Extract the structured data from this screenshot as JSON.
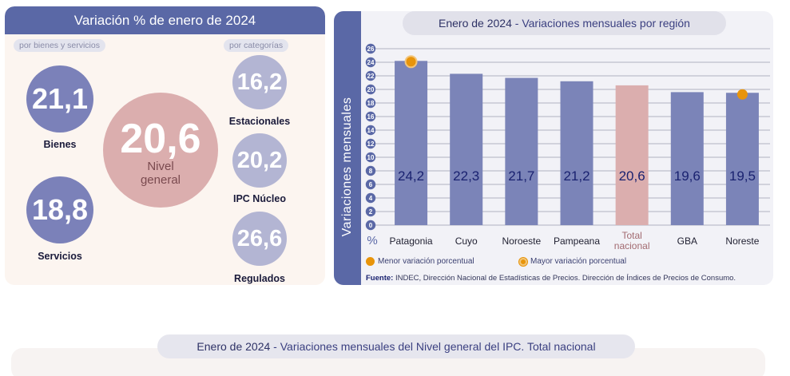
{
  "left": {
    "title": "Variación % de enero de 2024",
    "pill_goods": "por bienes y servicios",
    "pill_categories": "por categorías",
    "bubbles": [
      {
        "value": "21,1",
        "label": "Bienes"
      },
      {
        "value": "18,8",
        "label": "Servicios"
      },
      {
        "value": "20,6",
        "label_line1": "Nivel",
        "label_line2": "general"
      },
      {
        "value": "16,2",
        "label": "Estacionales"
      },
      {
        "value": "20,2",
        "label": "IPC Núcleo"
      },
      {
        "value": "26,6",
        "label": "Regulados"
      }
    ]
  },
  "right": {
    "title_prefix": "Enero de 2024",
    "title_sep": " - ",
    "title_main": "Variaciones mensuales por región",
    "y_axis_label": "Variaciones   mensuales",
    "y_unit": "%",
    "legend_min": "Menor variación porcentual",
    "legend_max": "Mayor variación porcentual",
    "source_bold": "Fuente:",
    "source_text": " INDEC, Dirección Nacional de Estadísticas de Precios. Dirección de Índices de Precios de Consumo."
  },
  "chart_data": {
    "type": "bar",
    "categories": [
      "Patagonia",
      "Cuyo",
      "Noroeste",
      "Pampeana",
      "Total nacional",
      "GBA",
      "Noreste"
    ],
    "values": [
      24.2,
      22.3,
      21.7,
      21.2,
      20.6,
      19.6,
      19.5
    ],
    "value_labels": [
      "24,2",
      "22,3",
      "21,7",
      "21,2",
      "20,6",
      "19,6",
      "19,5"
    ],
    "ylim": [
      0,
      26
    ],
    "yticks": [
      0,
      2,
      4,
      6,
      8,
      10,
      12,
      14,
      16,
      18,
      20,
      22,
      24,
      26
    ],
    "highlight_index": 4,
    "max_index": 0,
    "min_index": 6,
    "bar_color": "#7b84b8",
    "highlight_color": "#dbaeae",
    "marker_color": "#e8940a",
    "grid": true
  },
  "bottom": {
    "title_prefix": "Enero de 2024",
    "title_sep": " - ",
    "title_main": "Variaciones mensuales del Nivel general del IPC. Total nacional"
  }
}
